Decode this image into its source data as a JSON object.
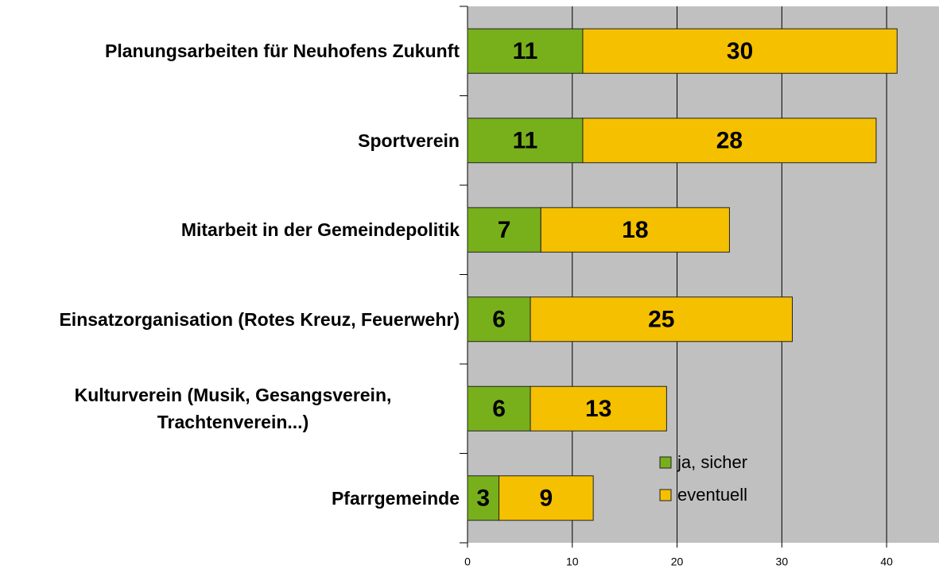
{
  "chart_data": {
    "type": "stacked_barh",
    "categories": [
      "Planungsarbeiten für Neuhofens Zukunft",
      "Sportverein",
      "Mitarbeit in der Gemeindepolitik",
      "Einsatzorganisation (Rotes Kreuz, Feuerwehr)",
      "Kulturverein (Musik, Gesangsverein, Trachtenverein...)",
      "Pfarrgemeinde"
    ],
    "series": [
      {
        "name": "ja, sicher",
        "color": "#78b01c",
        "values": [
          11,
          11,
          7,
          6,
          6,
          3
        ]
      },
      {
        "name": "eventuell",
        "color": "#f4c000",
        "values": [
          30,
          28,
          18,
          25,
          13,
          9
        ]
      }
    ],
    "xlim": [
      0,
      45
    ],
    "xticks": [
      0,
      10,
      20,
      30,
      40
    ],
    "grid": true,
    "legend": "lower center"
  }
}
